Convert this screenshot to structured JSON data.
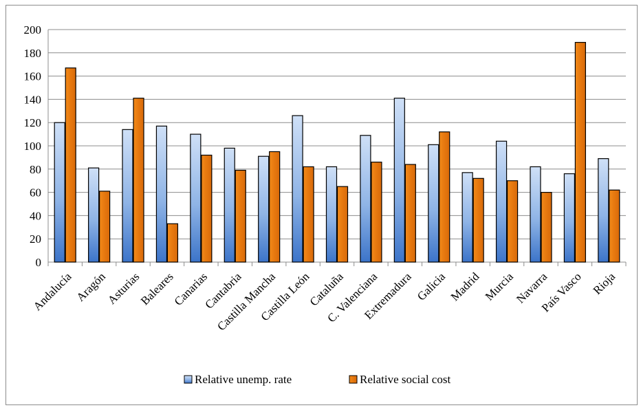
{
  "chart_data": {
    "type": "bar",
    "title": "",
    "xlabel": "",
    "ylabel": "",
    "ylim": [
      0,
      200
    ],
    "yticks": [
      0,
      20,
      40,
      60,
      80,
      100,
      120,
      140,
      160,
      180,
      200
    ],
    "grid": true,
    "legend_position": "bottom",
    "categories": [
      "Andalucía",
      "Aragón",
      "Asturias",
      "Baleares",
      "Canarias",
      "Cantabria",
      "Castilla Mancha",
      "Castilla León",
      "Cataluña",
      "C. Valenciana",
      "Extremadura",
      "Galicia",
      "Madrid",
      "Murcia",
      "Navarra",
      "País Vasco",
      "Rioja"
    ],
    "series": [
      {
        "name": "Relative unemp. rate",
        "color": "#4f81bd",
        "values": [
          120,
          81,
          114,
          117,
          110,
          98,
          91,
          126,
          82,
          109,
          141,
          101,
          77,
          104,
          82,
          76,
          89
        ]
      },
      {
        "name": "Relative social cost",
        "color": "#f79646",
        "values": [
          167,
          61,
          141,
          33,
          92,
          79,
          95,
          82,
          65,
          86,
          84,
          112,
          72,
          70,
          60,
          189,
          62
        ]
      }
    ]
  }
}
